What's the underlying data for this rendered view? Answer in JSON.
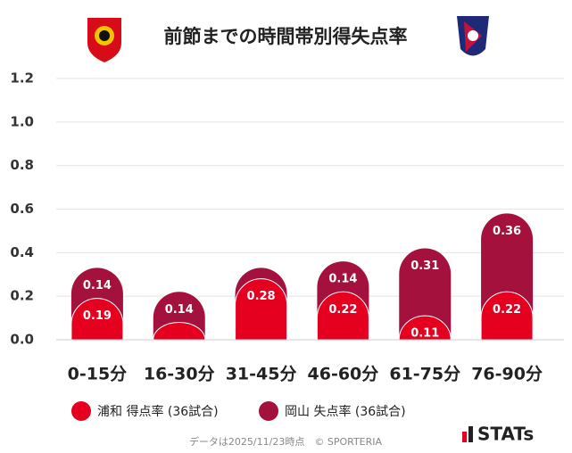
{
  "chart_data": {
    "type": "stacked-capsule-bar",
    "title": "前節までの時間帯別得失点率",
    "categories": [
      "0-15分",
      "16-30分",
      "31-45分",
      "46-60分",
      "61-75分",
      "76-90分"
    ],
    "series": [
      {
        "name": "浦和 得点率 (36試合)",
        "color": "#e60020",
        "values": [
          0.19,
          0.08,
          0.28,
          0.22,
          0.11,
          0.22
        ],
        "value_labels": [
          "0.19",
          null,
          "0.28",
          "0.22",
          "0.11",
          "0.22"
        ]
      },
      {
        "name": "岡山 失点率 (36試合)",
        "color": "#a3113c",
        "values": [
          0.14,
          0.14,
          0.05,
          0.14,
          0.31,
          0.36
        ],
        "value_labels": [
          "0.14",
          "0.14",
          null,
          "0.14",
          "0.31",
          "0.36"
        ]
      }
    ],
    "ylim": [
      0,
      1.2
    ],
    "yticks": [
      {
        "value": 0,
        "label": "0.0"
      },
      0.2,
      0.4,
      0.6,
      0.8,
      {
        "value": 1,
        "label": "1.0"
      },
      1.2
    ],
    "grid": true,
    "footer": "データは2025/11/23時点　© SPORTERIA",
    "brand": "STATs"
  }
}
